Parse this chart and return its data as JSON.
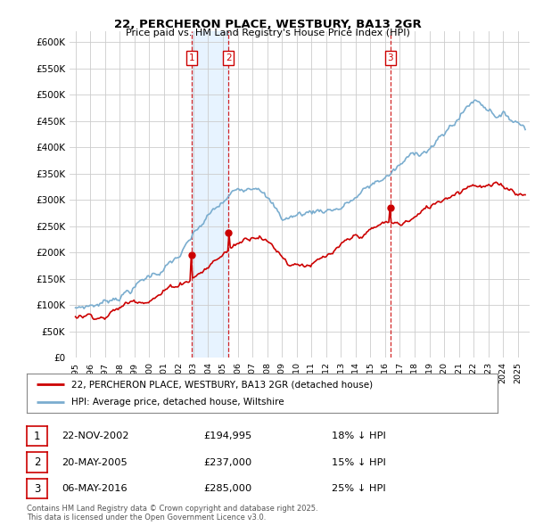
{
  "title": "22, PERCHERON PLACE, WESTBURY, BA13 2GR",
  "subtitle": "Price paid vs. HM Land Registry's House Price Index (HPI)",
  "legend_house": "22, PERCHERON PLACE, WESTBURY, BA13 2GR (detached house)",
  "legend_hpi": "HPI: Average price, detached house, Wiltshire",
  "purchases": [
    {
      "num": 1,
      "date": "22-NOV-2002",
      "price": 194995,
      "note": "18% ↓ HPI"
    },
    {
      "num": 2,
      "date": "20-MAY-2005",
      "price": 237000,
      "note": "15% ↓ HPI"
    },
    {
      "num": 3,
      "date": "06-MAY-2016",
      "price": 285000,
      "note": "25% ↓ HPI"
    }
  ],
  "footnote": "Contains HM Land Registry data © Crown copyright and database right 2025.\nThis data is licensed under the Open Government Licence v3.0.",
  "house_color": "#cc0000",
  "hpi_color": "#7aadcf",
  "vline_color": "#cc0000",
  "shade_color": "#ddeeff",
  "ylim": [
    0,
    620000
  ],
  "yticks": [
    0,
    50000,
    100000,
    150000,
    200000,
    250000,
    300000,
    350000,
    400000,
    450000,
    500000,
    550000,
    600000
  ],
  "background_color": "#ffffff",
  "grid_color": "#cccccc",
  "purchase_times": [
    2002.88,
    2005.38,
    2016.35
  ],
  "purchase_prices": [
    194995,
    237000,
    285000
  ]
}
